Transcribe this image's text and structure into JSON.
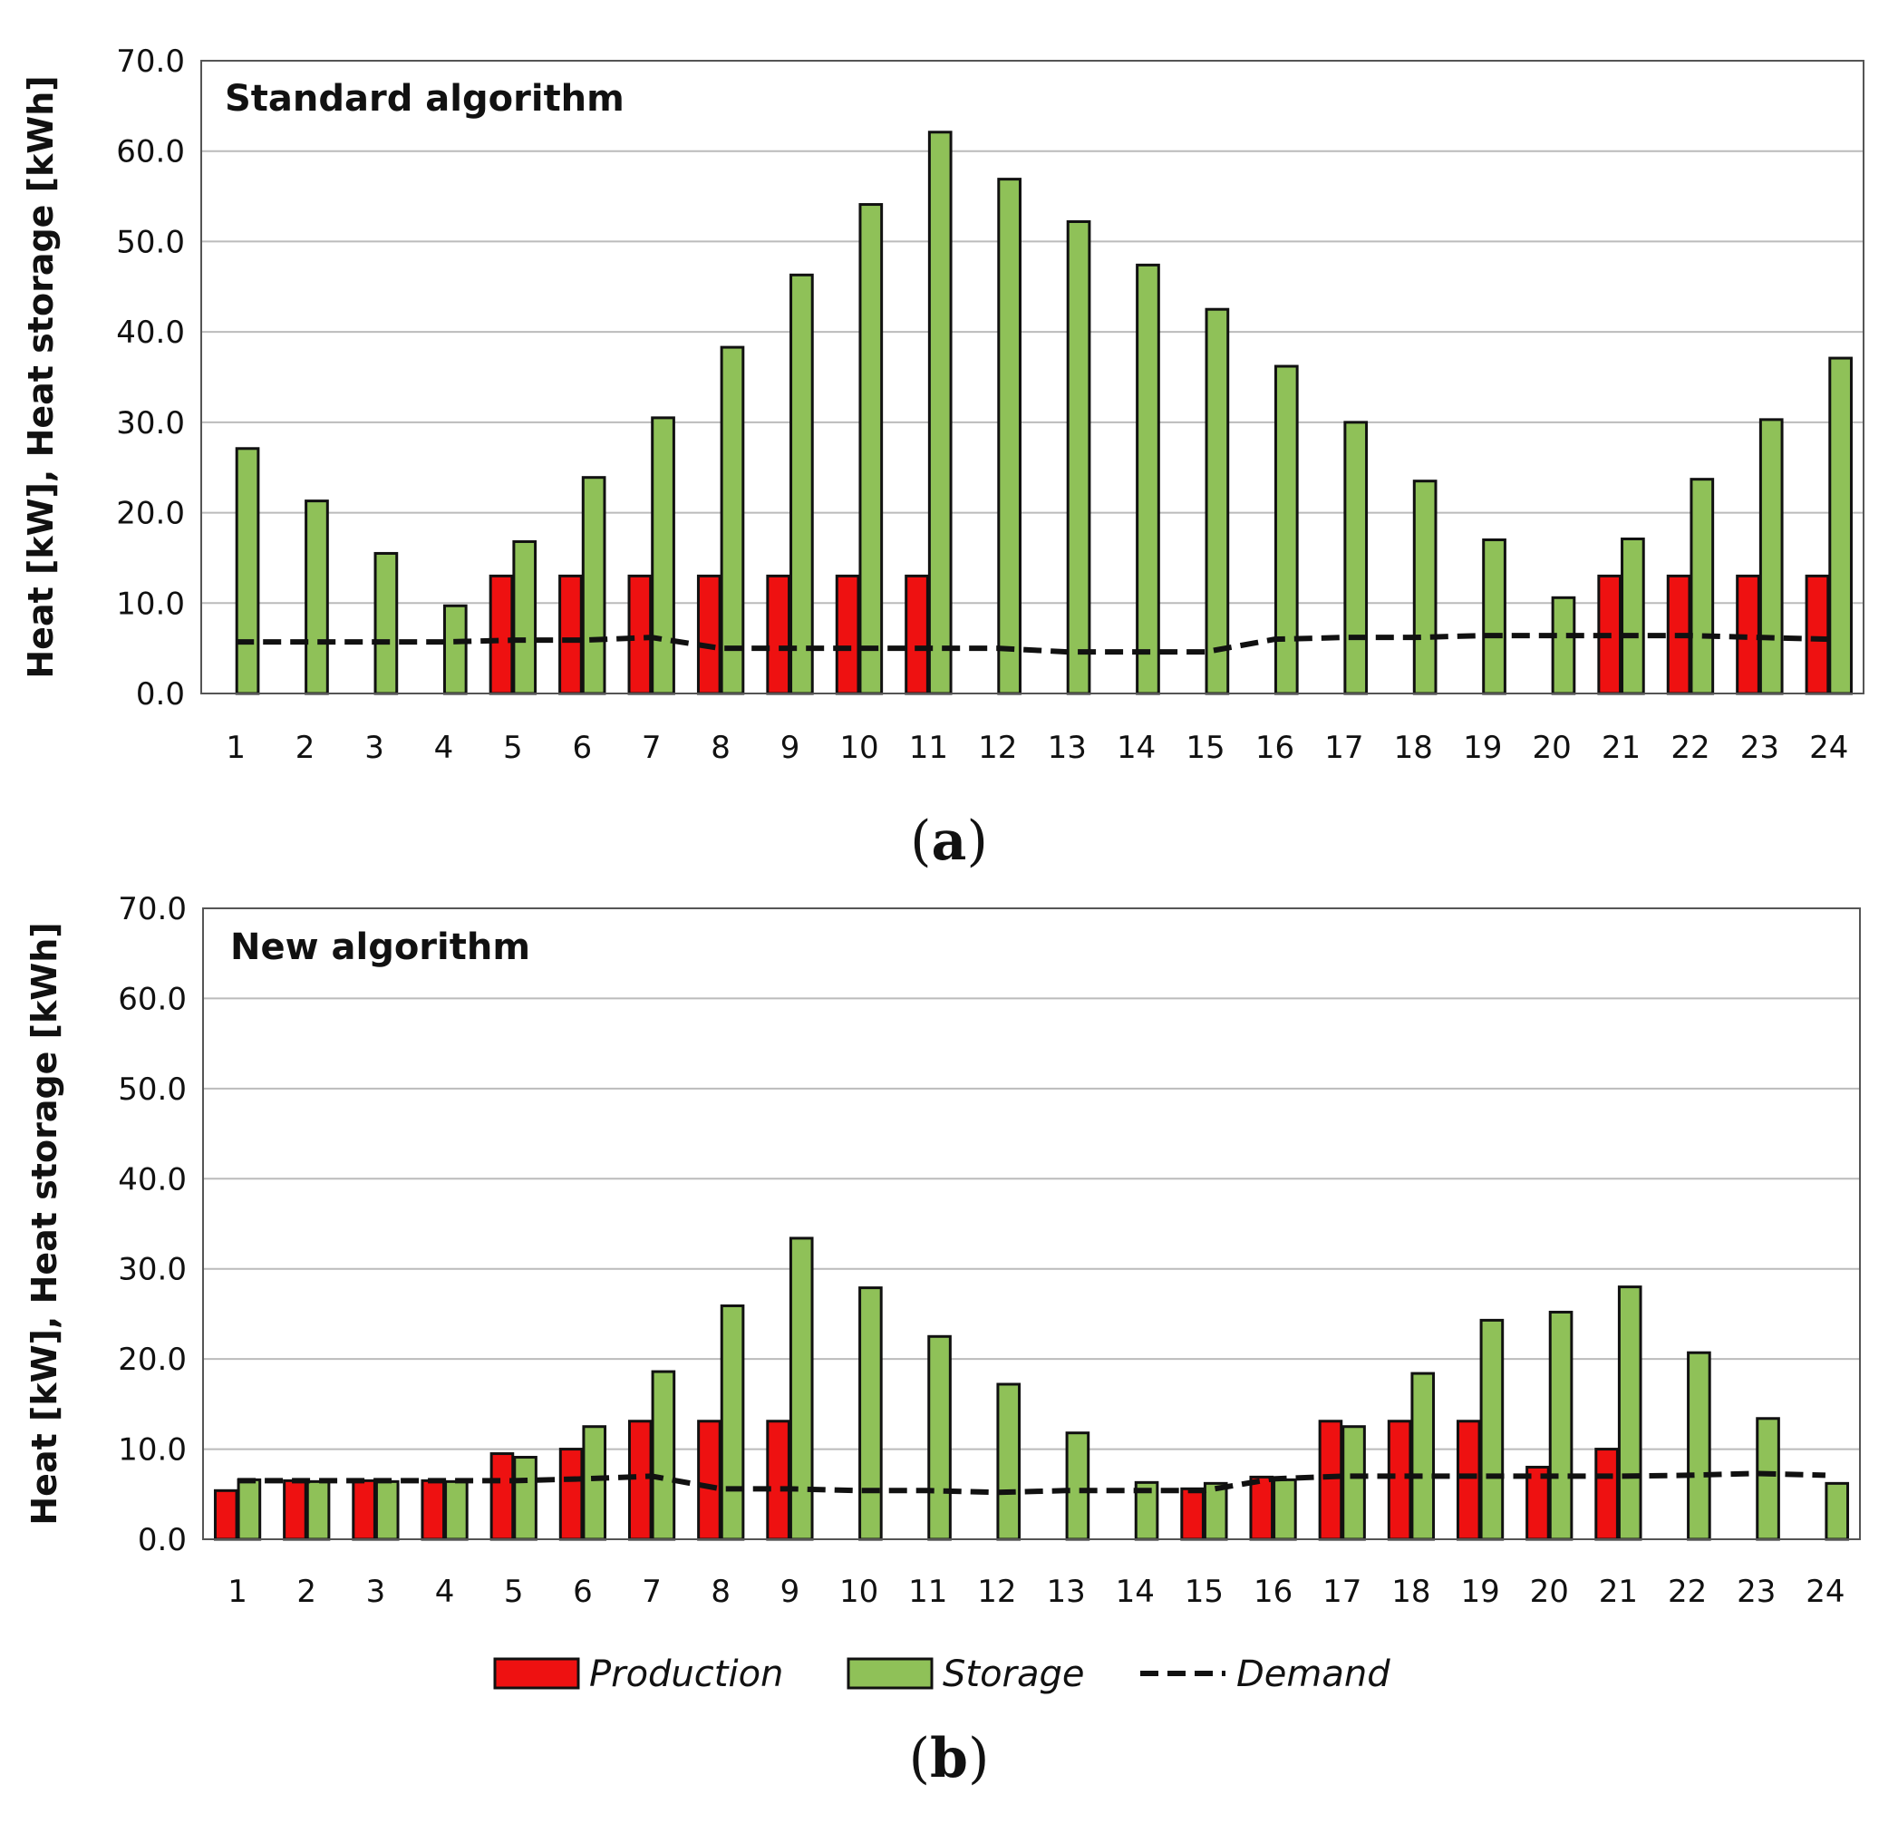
{
  "colors": {
    "production": "#ee1111",
    "storage": "#8fc158",
    "demand": "#111111",
    "grid": "#bbbbbb",
    "frame": "#555555"
  },
  "legend": {
    "production": "Production",
    "storage": "Storage",
    "demand": "Demand"
  },
  "chart_data": [
    {
      "type": "bar",
      "title": "Standard algorithm",
      "caption": "(a)",
      "caption_letter": "a",
      "ylabel": "Heat [kW], Heat storage [kWh]",
      "ylim": [
        0,
        70
      ],
      "yticks": [
        "0.0",
        "10.0",
        "20.0",
        "30.0",
        "40.0",
        "50.0",
        "60.0",
        "70.0"
      ],
      "categories": [
        "1",
        "2",
        "3",
        "4",
        "5",
        "6",
        "7",
        "8",
        "9",
        "10",
        "11",
        "12",
        "13",
        "14",
        "15",
        "16",
        "17",
        "18",
        "19",
        "20",
        "21",
        "22",
        "23",
        "24"
      ],
      "series": [
        {
          "name": "Production",
          "kind": "bar",
          "values": [
            0,
            0,
            0,
            0,
            13,
            13,
            13,
            13,
            13,
            13,
            13,
            0,
            0,
            0,
            0,
            0,
            0,
            0,
            0,
            0,
            13,
            13,
            13,
            13
          ]
        },
        {
          "name": "Storage",
          "kind": "bar",
          "values": [
            27.1,
            21.3,
            15.5,
            9.7,
            16.8,
            23.9,
            30.5,
            38.3,
            46.3,
            54.1,
            62.1,
            56.9,
            52.2,
            47.4,
            42.5,
            36.2,
            30.0,
            23.5,
            17.0,
            10.6,
            17.1,
            23.7,
            30.3,
            37.1
          ]
        },
        {
          "name": "Demand",
          "kind": "line",
          "style": "dashed",
          "values": [
            5.7,
            5.7,
            5.7,
            5.7,
            5.9,
            5.9,
            6.2,
            5.0,
            5.0,
            5.0,
            5.0,
            5.0,
            4.6,
            4.6,
            4.6,
            6.0,
            6.2,
            6.2,
            6.4,
            6.4,
            6.4,
            6.4,
            6.2,
            6.0
          ]
        }
      ]
    },
    {
      "type": "bar",
      "title": "New algorithm",
      "caption": "(b)",
      "caption_letter": "b",
      "ylabel": "Heat [kW], Heat storage [kWh]",
      "ylim": [
        0,
        70
      ],
      "yticks": [
        "0.0",
        "10.0",
        "20.0",
        "30.0",
        "40.0",
        "50.0",
        "60.0",
        "70.0"
      ],
      "categories": [
        "1",
        "2",
        "3",
        "4",
        "5",
        "6",
        "7",
        "8",
        "9",
        "10",
        "11",
        "12",
        "13",
        "14",
        "15",
        "16",
        "17",
        "18",
        "19",
        "20",
        "21",
        "22",
        "23",
        "24"
      ],
      "series": [
        {
          "name": "Production",
          "kind": "bar",
          "values": [
            5.4,
            6.5,
            6.5,
            6.5,
            9.5,
            10.0,
            13.1,
            13.1,
            13.1,
            0,
            0,
            0,
            0,
            0,
            5.6,
            6.9,
            13.1,
            13.1,
            13.1,
            8.0,
            10.0,
            0,
            0,
            0
          ]
        },
        {
          "name": "Storage",
          "kind": "bar",
          "values": [
            6.6,
            6.4,
            6.4,
            6.4,
            9.1,
            12.5,
            18.6,
            25.9,
            33.4,
            27.9,
            22.5,
            17.2,
            11.8,
            6.3,
            6.2,
            6.6,
            12.5,
            18.4,
            24.3,
            25.2,
            28.0,
            20.7,
            13.4,
            6.2
          ]
        },
        {
          "name": "Demand",
          "kind": "line",
          "style": "dashed",
          "values": [
            6.5,
            6.5,
            6.5,
            6.5,
            6.5,
            6.7,
            7.0,
            5.6,
            5.6,
            5.4,
            5.4,
            5.2,
            5.4,
            5.4,
            5.4,
            6.7,
            7.0,
            7.0,
            7.0,
            7.0,
            7.0,
            7.1,
            7.3,
            7.1
          ]
        }
      ]
    }
  ]
}
